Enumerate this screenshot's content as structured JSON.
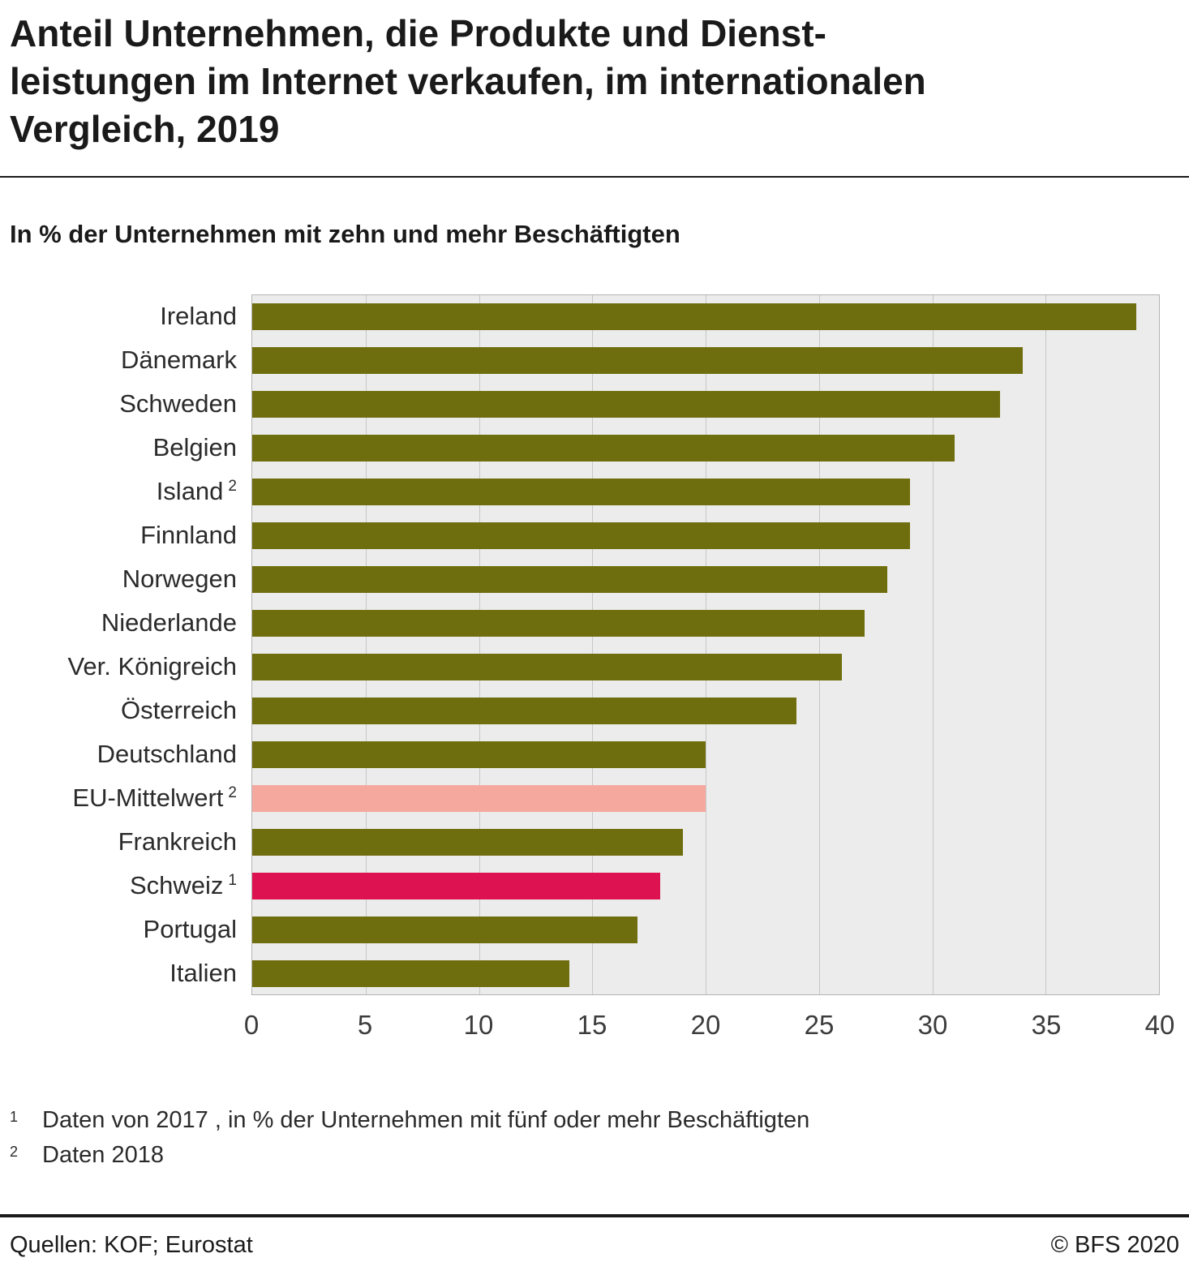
{
  "title": {
    "lines": [
      "Anteil Unternehmen, die Produkte und Dienst-",
      "leistungen im Internet verkaufen, im internationalen",
      "Vergleich, 2019"
    ]
  },
  "subtitle": "In % der Unternehmen mit zehn und mehr Beschäftigten",
  "chart_data": {
    "type": "bar",
    "orientation": "horizontal",
    "title": "Anteil Unternehmen, die Produkte und Dienstleistungen im Internet verkaufen, im internationalen Vergleich, 2019",
    "xlabel": "",
    "ylabel": "",
    "xlim": [
      0,
      40
    ],
    "xticks": [
      0,
      5,
      10,
      15,
      20,
      25,
      30,
      35,
      40
    ],
    "grid": true,
    "colors": {
      "default": "#6f6e0e",
      "eu_average": "#f5a89e",
      "switzerland": "#dc1251"
    },
    "categories": [
      {
        "label": "Ireland",
        "sup": "",
        "value": 39,
        "color": "default"
      },
      {
        "label": "Dänemark",
        "sup": "",
        "value": 34,
        "color": "default"
      },
      {
        "label": "Schweden",
        "sup": "",
        "value": 33,
        "color": "default"
      },
      {
        "label": "Belgien",
        "sup": "",
        "value": 31,
        "color": "default"
      },
      {
        "label": "Island",
        "sup": "2",
        "value": 29,
        "color": "default"
      },
      {
        "label": "Finnland",
        "sup": "",
        "value": 29,
        "color": "default"
      },
      {
        "label": "Norwegen",
        "sup": "",
        "value": 28,
        "color": "default"
      },
      {
        "label": "Niederlande",
        "sup": "",
        "value": 27,
        "color": "default"
      },
      {
        "label": "Ver. Königreich",
        "sup": "",
        "value": 26,
        "color": "default"
      },
      {
        "label": "Österreich",
        "sup": "",
        "value": 24,
        "color": "default"
      },
      {
        "label": "Deutschland",
        "sup": "",
        "value": 20,
        "color": "default"
      },
      {
        "label": "EU-Mittelwert",
        "sup": "2",
        "value": 20,
        "color": "eu_average"
      },
      {
        "label": "Frankreich",
        "sup": "",
        "value": 19,
        "color": "default"
      },
      {
        "label": "Schweiz",
        "sup": "1",
        "value": 18,
        "color": "switzerland"
      },
      {
        "label": "Portugal",
        "sup": "",
        "value": 17,
        "color": "default"
      },
      {
        "label": "Italien",
        "sup": "",
        "value": 14,
        "color": "default"
      }
    ]
  },
  "footnotes": [
    {
      "marker": "1",
      "text": "Daten von 2017 , in % der Unternehmen mit fünf oder mehr Beschäftigten"
    },
    {
      "marker": "2",
      "text": "Daten 2018"
    }
  ],
  "footer": {
    "source": "Quellen: KOF; Eurostat",
    "copyright": "© BFS 2020"
  }
}
